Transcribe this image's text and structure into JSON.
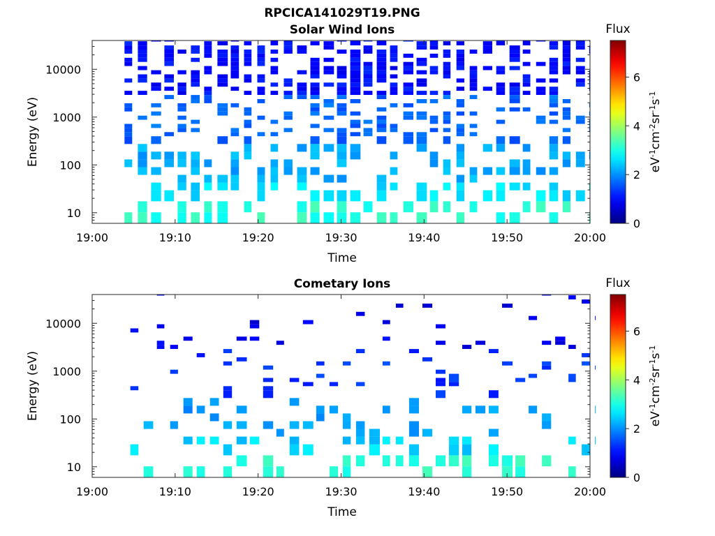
{
  "figure": {
    "title": "RPCICA141029T19.PNG"
  },
  "chart_data": [
    {
      "type": "heatmap",
      "title": "Solar Wind Ions",
      "xlabel": "Time",
      "ylabel": "Energy (eV)",
      "x_ticks": [
        "19:00",
        "19:10",
        "19:20",
        "19:30",
        "19:40",
        "19:50",
        "20:00"
      ],
      "x_range": [
        "19:00",
        "20:00"
      ],
      "y_scale": "log",
      "y_ticks": [
        10,
        100,
        1000,
        10000
      ],
      "y_range": [
        6,
        40000
      ],
      "colorbar": {
        "title": "Flux",
        "label": "eV-1cm-2sr-1s-1",
        "ticks": [
          0,
          2,
          4,
          6
        ],
        "range": [
          0,
          7.5
        ],
        "colormap": "jet"
      },
      "scan_period_min": 1.6,
      "scan_start_min": 3.9,
      "scan_end_min": 60.8,
      "active_energy_range_eV": [
        6,
        40000
      ],
      "value_bands": [
        {
          "energy_eV": [
            6,
            16
          ],
          "flux": 3.1
        },
        {
          "energy_eV": [
            16,
            45
          ],
          "flux": 2.6
        },
        {
          "energy_eV": [
            45,
            300
          ],
          "flux": 2.2
        },
        {
          "energy_eV": [
            300,
            3000
          ],
          "flux": 1.7
        },
        {
          "energy_eV": [
            3000,
            40000
          ],
          "flux": 1.0
        }
      ]
    },
    {
      "type": "heatmap",
      "title": "Cometary Ions",
      "xlabel": "Time",
      "ylabel": "Energy (eV)",
      "x_ticks": [
        "19:00",
        "19:10",
        "19:20",
        "19:30",
        "19:40",
        "19:50",
        "20:00"
      ],
      "x_range": [
        "19:00",
        "20:00"
      ],
      "y_scale": "log",
      "y_ticks": [
        10,
        100,
        1000,
        10000
      ],
      "y_range": [
        6,
        40000
      ],
      "colorbar": {
        "title": "Flux",
        "label": "eV-1cm-2sr-1s-1",
        "ticks": [
          0,
          2,
          4,
          6
        ],
        "range": [
          0,
          7.5
        ],
        "colormap": "jet"
      },
      "scan_period_min": 1.6,
      "scan_start_min": 4.6,
      "scan_end_min": 60.8,
      "active_energy_range_eV": [
        6,
        40000
      ],
      "value_bands": [
        {
          "energy_eV": [
            6,
            16
          ],
          "flux": 3.1
        },
        {
          "energy_eV": [
            16,
            45
          ],
          "flux": 2.5
        },
        {
          "energy_eV": [
            45,
            300
          ],
          "flux": 2.1
        },
        {
          "energy_eV": [
            300,
            3000
          ],
          "flux": 1.3
        },
        {
          "energy_eV": [
            3000,
            40000
          ],
          "flux": 0.8
        }
      ]
    }
  ]
}
